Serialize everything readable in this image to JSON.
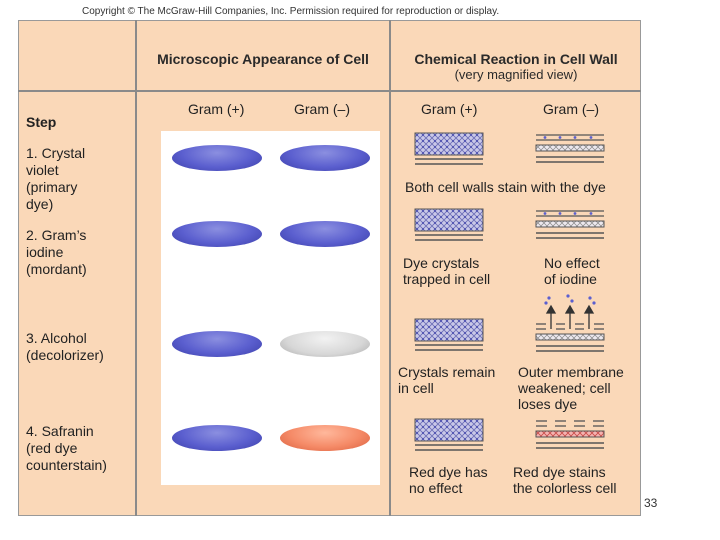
{
  "copyright": "Copyright © The McGraw-Hill Companies, Inc. Permission required for reproduction or display.",
  "headers": {
    "microscopic": "Microscopic Appearance of Cell",
    "chemical": "Chemical Reaction in Cell Wall",
    "chemical_sub": "(very magnified view)"
  },
  "column_labels": {
    "micro_pos": "Gram (+)",
    "micro_neg": "Gram (–)",
    "chem_pos": "Gram (+)",
    "chem_neg": "Gram (–)"
  },
  "step_title": "Step",
  "steps": [
    {
      "label": "1. Crystal\n    violet\n    (primary\n    dye)",
      "pos_cell": "purple",
      "neg_cell": "purple"
    },
    {
      "label": "2. Gram’s\n    iodine\n    (mordant)",
      "pos_cell": "purple",
      "neg_cell": "purple"
    },
    {
      "label": "3. Alcohol\n    (decolorizer)",
      "pos_cell": "purple",
      "neg_cell": "colorless"
    },
    {
      "label": "4. Safranin\n    (red dye\n    counterstain)",
      "pos_cell": "purple",
      "neg_cell": "red"
    }
  ],
  "reactions": {
    "step1_both": "Both cell walls stain with the dye",
    "step2_pos": "Dye crystals\ntrapped in cell",
    "step2_neg": "No effect\nof iodine",
    "step3_pos": "Crystals remain\nin cell",
    "step3_neg": "Outer membrane\nweakened; cell\nloses dye",
    "step4_pos": "Red dye has\nno effect",
    "step4_neg": "Red dye stains\nthe colorless cell"
  },
  "colors": {
    "background": "#fad8b8",
    "crystal_violet": "#5b5fcf",
    "decolorized": "#d7d7d7",
    "safranin": "#f58a67"
  },
  "page_number": "33"
}
